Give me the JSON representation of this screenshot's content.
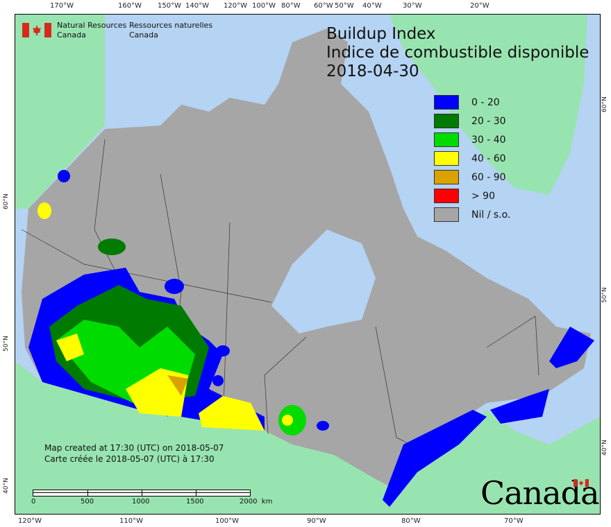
{
  "title": {
    "line1": "Buildup Index",
    "line2": "Indice de combustible disponible",
    "date": "2018-04-30"
  },
  "agency": {
    "en_line1": "Natural Resources",
    "en_line2": "Canada",
    "fr_line1": "Ressources naturelles",
    "fr_line2": "Canada"
  },
  "legend": [
    {
      "label": "0 - 20",
      "color": "#0000ff"
    },
    {
      "label": "20 - 30",
      "color": "#007a00"
    },
    {
      "label": "30 - 40",
      "color": "#00dc00"
    },
    {
      "label": "40 - 60",
      "color": "#ffff00"
    },
    {
      "label": "60 - 90",
      "color": "#d9a200"
    },
    {
      "label": "> 90",
      "color": "#ff0000"
    },
    {
      "label": "Nil / s.o.",
      "color": "#a6a6a6"
    }
  ],
  "credit": {
    "en": "Map created at 17:30 (UTC) on 2018-05-07",
    "fr": "Carte créée le 2018-05-07 (UTC) à 17:30"
  },
  "scale_bar": {
    "labels": [
      "0",
      "500",
      "1000",
      "1500",
      "2000  km"
    ]
  },
  "top_ticks": [
    "170°W",
    "160°W",
    "150°W",
    "140°W",
    "120°W",
    "100°W",
    "80°W",
    "60°W",
    "50°W",
    "40°W",
    "30°W",
    "20°W"
  ],
  "bottom_ticks": [
    "120°W",
    "110°W",
    "100°W",
    "90°W",
    "80°W",
    "70°W"
  ],
  "left_ticks": [
    "60°N",
    "50°N",
    "40°N"
  ],
  "right_ticks": [
    "60°N",
    "50°N",
    "40°N"
  ],
  "wordmark": "Canada",
  "colors": {
    "ocean": "#b5d3f2",
    "foreign_land": "#98e4b0",
    "no_data": "#a6a6a6"
  }
}
